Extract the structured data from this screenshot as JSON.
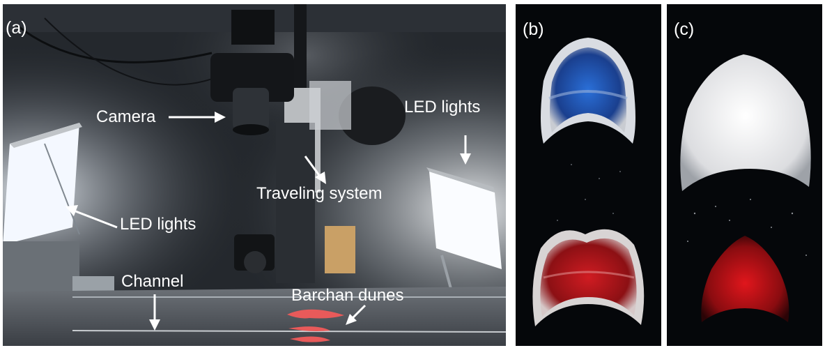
{
  "panels": {
    "a": {
      "label": "(a)"
    },
    "b": {
      "label": "(b)"
    },
    "c": {
      "label": "(c)"
    }
  },
  "annotations": {
    "camera": "Camera",
    "led_left": "LED lights",
    "led_right": "LED lights",
    "traveling": "Traveling system",
    "channel": "Channel",
    "barchan": "Barchan dunes"
  },
  "colors": {
    "blue_dune": "#1f5fc8",
    "red_dune": "#c8141c",
    "white_dune": "#f2f2f2",
    "led": "#f4f8ff"
  }
}
